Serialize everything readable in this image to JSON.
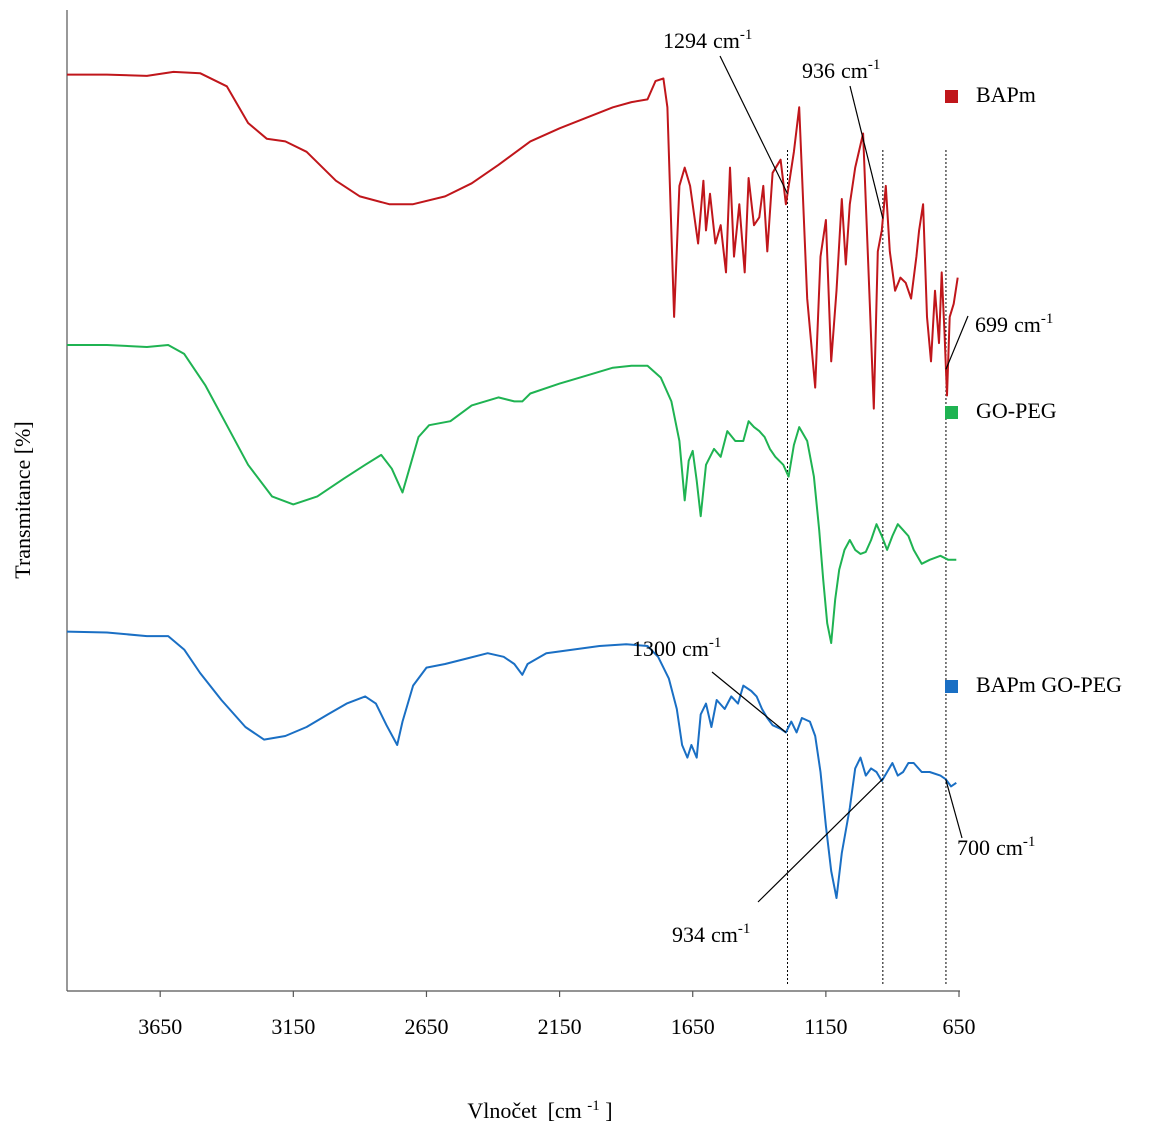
{
  "chart_data": {
    "type": "line",
    "title": "",
    "xlabel": "Vlnočet",
    "xlabel_unit": "[cm",
    "xlabel_exp": "-1",
    "xlabel_close": "]",
    "ylabel": "Transmitance [%]",
    "xlim": [
      4000,
      650
    ],
    "x_reversed": true,
    "x_ticks": [
      3650,
      3150,
      2650,
      2150,
      1650,
      1150,
      650
    ],
    "y_ticks_shown": false,
    "grid": false,
    "legend_position": "right",
    "series": [
      {
        "name": "BAPm",
        "color": "#c0161b",
        "points": [
          [
            4000,
            0.975
          ],
          [
            3850,
            0.975
          ],
          [
            3700,
            0.97
          ],
          [
            3600,
            0.985
          ],
          [
            3500,
            0.98
          ],
          [
            3400,
            0.93
          ],
          [
            3320,
            0.79
          ],
          [
            3250,
            0.73
          ],
          [
            3180,
            0.72
          ],
          [
            3100,
            0.68
          ],
          [
            2990,
            0.57
          ],
          [
            2900,
            0.51
          ],
          [
            2790,
            0.48
          ],
          [
            2700,
            0.48
          ],
          [
            2580,
            0.51
          ],
          [
            2480,
            0.56
          ],
          [
            2380,
            0.63
          ],
          [
            2260,
            0.72
          ],
          [
            2150,
            0.77
          ],
          [
            2050,
            0.81
          ],
          [
            1950,
            0.85
          ],
          [
            1880,
            0.87
          ],
          [
            1820,
            0.88
          ],
          [
            1790,
            0.95
          ],
          [
            1760,
            0.96
          ],
          [
            1745,
            0.85
          ],
          [
            1720,
            0.05
          ],
          [
            1700,
            0.55
          ],
          [
            1680,
            0.62
          ],
          [
            1660,
            0.55
          ],
          [
            1630,
            0.33
          ],
          [
            1610,
            0.57
          ],
          [
            1600,
            0.38
          ],
          [
            1585,
            0.52
          ],
          [
            1565,
            0.33
          ],
          [
            1545,
            0.4
          ],
          [
            1525,
            0.22
          ],
          [
            1510,
            0.62
          ],
          [
            1495,
            0.28
          ],
          [
            1475,
            0.48
          ],
          [
            1455,
            0.22
          ],
          [
            1440,
            0.58
          ],
          [
            1420,
            0.4
          ],
          [
            1400,
            0.43
          ],
          [
            1385,
            0.55
          ],
          [
            1370,
            0.3
          ],
          [
            1350,
            0.6
          ],
          [
            1320,
            0.65
          ],
          [
            1300,
            0.48
          ],
          [
            1270,
            0.68
          ],
          [
            1250,
            0.85
          ],
          [
            1220,
            0.12
          ],
          [
            1190,
            -0.22
          ],
          [
            1170,
            0.28
          ],
          [
            1150,
            0.42
          ],
          [
            1130,
            -0.12
          ],
          [
            1110,
            0.15
          ],
          [
            1090,
            0.5
          ],
          [
            1075,
            0.25
          ],
          [
            1060,
            0.48
          ],
          [
            1040,
            0.62
          ],
          [
            1010,
            0.75
          ],
          [
            985,
            0.1
          ],
          [
            970,
            -0.3
          ],
          [
            955,
            0.3
          ],
          [
            940,
            0.38
          ],
          [
            925,
            0.55
          ],
          [
            910,
            0.3
          ],
          [
            890,
            0.15
          ],
          [
            870,
            0.2
          ],
          [
            850,
            0.18
          ],
          [
            830,
            0.12
          ],
          [
            810,
            0.28
          ],
          [
            800,
            0.38
          ],
          [
            785,
            0.48
          ],
          [
            770,
            0.05
          ],
          [
            755,
            -0.12
          ],
          [
            740,
            0.15
          ],
          [
            725,
            -0.05
          ],
          [
            715,
            0.22
          ],
          [
            705,
            0.0
          ],
          [
            695,
            -0.25
          ],
          [
            685,
            0.05
          ],
          [
            670,
            0.1
          ],
          [
            655,
            0.2
          ]
        ]
      },
      {
        "name": "GO-PEG",
        "color": "#1fb352",
        "points": [
          [
            4000,
            0.985
          ],
          [
            3850,
            0.985
          ],
          [
            3700,
            0.975
          ],
          [
            3620,
            0.985
          ],
          [
            3560,
            0.94
          ],
          [
            3480,
            0.78
          ],
          [
            3400,
            0.58
          ],
          [
            3320,
            0.38
          ],
          [
            3230,
            0.22
          ],
          [
            3150,
            0.18
          ],
          [
            3060,
            0.22
          ],
          [
            2960,
            0.31
          ],
          [
            2880,
            0.38
          ],
          [
            2820,
            0.43
          ],
          [
            2780,
            0.36
          ],
          [
            2740,
            0.24
          ],
          [
            2710,
            0.38
          ],
          [
            2680,
            0.52
          ],
          [
            2640,
            0.58
          ],
          [
            2560,
            0.6
          ],
          [
            2480,
            0.68
          ],
          [
            2380,
            0.72
          ],
          [
            2320,
            0.7
          ],
          [
            2290,
            0.7
          ],
          [
            2260,
            0.74
          ],
          [
            2150,
            0.79
          ],
          [
            2050,
            0.83
          ],
          [
            1950,
            0.87
          ],
          [
            1880,
            0.88
          ],
          [
            1820,
            0.88
          ],
          [
            1770,
            0.82
          ],
          [
            1730,
            0.7
          ],
          [
            1700,
            0.5
          ],
          [
            1680,
            0.2
          ],
          [
            1665,
            0.4
          ],
          [
            1650,
            0.45
          ],
          [
            1635,
            0.3
          ],
          [
            1620,
            0.12
          ],
          [
            1600,
            0.38
          ],
          [
            1570,
            0.46
          ],
          [
            1545,
            0.42
          ],
          [
            1520,
            0.55
          ],
          [
            1490,
            0.5
          ],
          [
            1460,
            0.5
          ],
          [
            1440,
            0.6
          ],
          [
            1420,
            0.57
          ],
          [
            1400,
            0.55
          ],
          [
            1380,
            0.52
          ],
          [
            1360,
            0.46
          ],
          [
            1340,
            0.42
          ],
          [
            1310,
            0.38
          ],
          [
            1290,
            0.32
          ],
          [
            1270,
            0.48
          ],
          [
            1250,
            0.57
          ],
          [
            1220,
            0.5
          ],
          [
            1195,
            0.32
          ],
          [
            1175,
            0.05
          ],
          [
            1160,
            -0.2
          ],
          [
            1145,
            -0.42
          ],
          [
            1130,
            -0.52
          ],
          [
            1115,
            -0.3
          ],
          [
            1100,
            -0.15
          ],
          [
            1080,
            -0.05
          ],
          [
            1060,
            0.0
          ],
          [
            1040,
            -0.05
          ],
          [
            1020,
            -0.07
          ],
          [
            1000,
            -0.06
          ],
          [
            980,
            0.0
          ],
          [
            960,
            0.08
          ],
          [
            940,
            0.02
          ],
          [
            920,
            -0.05
          ],
          [
            900,
            0.02
          ],
          [
            880,
            0.08
          ],
          [
            860,
            0.05
          ],
          [
            840,
            0.02
          ],
          [
            820,
            -0.05
          ],
          [
            790,
            -0.12
          ],
          [
            760,
            -0.1
          ],
          [
            720,
            -0.08
          ],
          [
            690,
            -0.1
          ],
          [
            660,
            -0.1
          ]
        ]
      },
      {
        "name": "BAPm GO-PEG",
        "color": "#1a6fc4",
        "points": [
          [
            4000,
            0.98
          ],
          [
            3850,
            0.975
          ],
          [
            3700,
            0.955
          ],
          [
            3620,
            0.955
          ],
          [
            3560,
            0.88
          ],
          [
            3500,
            0.75
          ],
          [
            3420,
            0.6
          ],
          [
            3330,
            0.45
          ],
          [
            3260,
            0.38
          ],
          [
            3180,
            0.4
          ],
          [
            3100,
            0.45
          ],
          [
            3020,
            0.52
          ],
          [
            2950,
            0.58
          ],
          [
            2880,
            0.62
          ],
          [
            2840,
            0.58
          ],
          [
            2800,
            0.46
          ],
          [
            2760,
            0.35
          ],
          [
            2740,
            0.48
          ],
          [
            2700,
            0.68
          ],
          [
            2650,
            0.78
          ],
          [
            2580,
            0.8
          ],
          [
            2500,
            0.83
          ],
          [
            2420,
            0.86
          ],
          [
            2360,
            0.84
          ],
          [
            2320,
            0.8
          ],
          [
            2290,
            0.74
          ],
          [
            2270,
            0.8
          ],
          [
            2200,
            0.86
          ],
          [
            2100,
            0.88
          ],
          [
            2000,
            0.9
          ],
          [
            1900,
            0.91
          ],
          [
            1820,
            0.9
          ],
          [
            1780,
            0.84
          ],
          [
            1740,
            0.72
          ],
          [
            1710,
            0.55
          ],
          [
            1690,
            0.35
          ],
          [
            1670,
            0.28
          ],
          [
            1655,
            0.35
          ],
          [
            1635,
            0.28
          ],
          [
            1620,
            0.52
          ],
          [
            1600,
            0.58
          ],
          [
            1580,
            0.45
          ],
          [
            1560,
            0.6
          ],
          [
            1530,
            0.55
          ],
          [
            1505,
            0.62
          ],
          [
            1480,
            0.58
          ],
          [
            1460,
            0.68
          ],
          [
            1430,
            0.65
          ],
          [
            1410,
            0.62
          ],
          [
            1390,
            0.55
          ],
          [
            1370,
            0.5
          ],
          [
            1350,
            0.46
          ],
          [
            1320,
            0.44
          ],
          [
            1300,
            0.42
          ],
          [
            1280,
            0.48
          ],
          [
            1260,
            0.42
          ],
          [
            1240,
            0.5
          ],
          [
            1210,
            0.48
          ],
          [
            1190,
            0.4
          ],
          [
            1170,
            0.2
          ],
          [
            1150,
            -0.1
          ],
          [
            1130,
            -0.35
          ],
          [
            1110,
            -0.5
          ],
          [
            1090,
            -0.25
          ],
          [
            1060,
            0.0
          ],
          [
            1040,
            0.22
          ],
          [
            1020,
            0.28
          ],
          [
            1000,
            0.18
          ],
          [
            980,
            0.22
          ],
          [
            960,
            0.2
          ],
          [
            940,
            0.15
          ],
          [
            920,
            0.2
          ],
          [
            900,
            0.25
          ],
          [
            880,
            0.18
          ],
          [
            860,
            0.2
          ],
          [
            840,
            0.25
          ],
          [
            820,
            0.25
          ],
          [
            790,
            0.2
          ],
          [
            760,
            0.2
          ],
          [
            720,
            0.18
          ],
          [
            700,
            0.16
          ],
          [
            680,
            0.12
          ],
          [
            660,
            0.14
          ]
        ]
      }
    ],
    "legend": [
      {
        "name": "BAPm",
        "color": "#c0161b"
      },
      {
        "name": "GO-PEG",
        "color": "#1fb352"
      },
      {
        "name": "BAPm GO-PEG",
        "color": "#1a6fc4"
      }
    ],
    "reference_lines": [
      1294,
      936,
      699
    ],
    "annotations": [
      {
        "num": "1294",
        "unit": "cm",
        "exp": "-1",
        "series": 0,
        "x": 1294
      },
      {
        "num": "936",
        "unit": "cm",
        "exp": "-1",
        "series": 0,
        "x": 936
      },
      {
        "num": "699",
        "unit": "cm",
        "exp": "-1",
        "series": 0,
        "x": 699
      },
      {
        "num": "1300",
        "unit": "cm",
        "exp": "-1",
        "series": 2,
        "x": 1300
      },
      {
        "num": "934",
        "unit": "cm",
        "exp": "-1",
        "series": 2,
        "x": 934
      },
      {
        "num": "700",
        "unit": "cm",
        "exp": "-1",
        "series": 2,
        "x": 700
      }
    ]
  }
}
